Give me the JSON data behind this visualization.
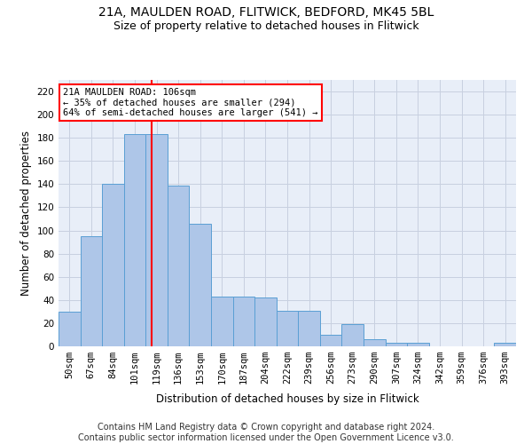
{
  "title1": "21A, MAULDEN ROAD, FLITWICK, BEDFORD, MK45 5BL",
  "title2": "Size of property relative to detached houses in Flitwick",
  "xlabel": "Distribution of detached houses by size in Flitwick",
  "ylabel": "Number of detached properties",
  "bar_heights": [
    30,
    95,
    140,
    183,
    183,
    139,
    106,
    43,
    43,
    42,
    31,
    31,
    10,
    19,
    6,
    3,
    3,
    0,
    0,
    0,
    3
  ],
  "bin_labels": [
    "50sqm",
    "67sqm",
    "84sqm",
    "101sqm",
    "119sqm",
    "136sqm",
    "153sqm",
    "170sqm",
    "187sqm",
    "204sqm",
    "222sqm",
    "239sqm",
    "256sqm",
    "273sqm",
    "290sqm",
    "307sqm",
    "324sqm",
    "342sqm",
    "359sqm",
    "376sqm",
    "393sqm"
  ],
  "bar_color": "#aec6e8",
  "bar_edge_color": "#5a9fd4",
  "property_line_x": 3.78,
  "annotation_text": "21A MAULDEN ROAD: 106sqm\n← 35% of detached houses are smaller (294)\n64% of semi-detached houses are larger (541) →",
  "annotation_box_color": "white",
  "annotation_box_edge_color": "red",
  "vline_color": "red",
  "ylim": [
    0,
    230
  ],
  "yticks": [
    0,
    20,
    40,
    60,
    80,
    100,
    120,
    140,
    160,
    180,
    200,
    220
  ],
  "footer_text": "Contains HM Land Registry data © Crown copyright and database right 2024.\nContains public sector information licensed under the Open Government Licence v3.0.",
  "bg_color": "#e8eef8",
  "grid_color": "#c8d0e0",
  "title_fontsize": 10,
  "subtitle_fontsize": 9,
  "axis_label_fontsize": 8.5,
  "tick_fontsize": 7.5,
  "annotation_fontsize": 7.5,
  "footer_fontsize": 7
}
